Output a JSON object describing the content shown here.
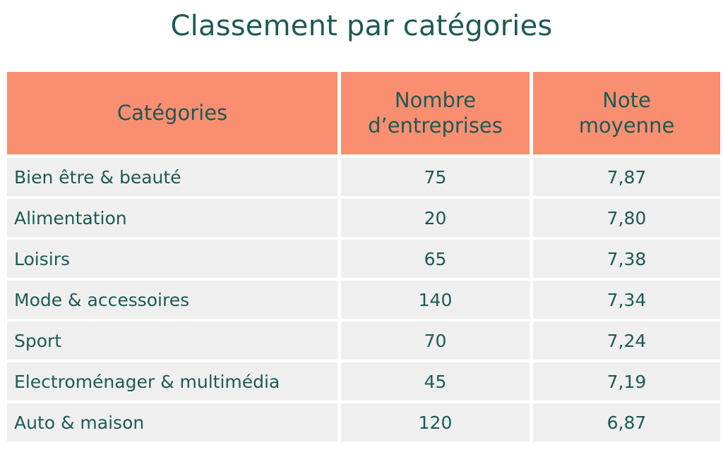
{
  "title": "Classement par catégories",
  "colors": {
    "header_bg": "#f98e71",
    "row_bg": "#efefef",
    "text": "#1d5a55"
  },
  "chart_data": {
    "type": "table",
    "title": "Classement par catégories",
    "columns": [
      "Catégories",
      "Nombre\nd’entreprises",
      "Note\nmoyenne"
    ],
    "rows": [
      [
        "Bien être & beauté",
        "75",
        "7,87"
      ],
      [
        "Alimentation",
        "20",
        "7,80"
      ],
      [
        "Loisirs",
        "65",
        "7,38"
      ],
      [
        "Mode & accessoires",
        "140",
        "7,34"
      ],
      [
        "Sport",
        "70",
        "7,24"
      ],
      [
        "Electroménager & multimédia",
        "45",
        "7,19"
      ],
      [
        "Auto & maison",
        "120",
        "6,87"
      ]
    ]
  }
}
